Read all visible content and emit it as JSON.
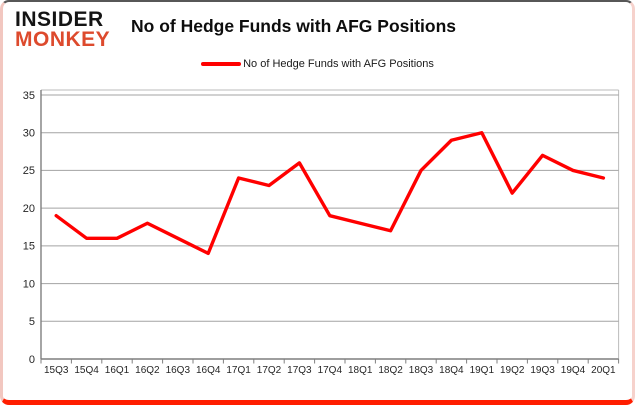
{
  "brand": {
    "line1": "INSIDER",
    "line2": "MONKEY"
  },
  "header": {
    "title": "No of Hedge Funds with AFG Positions"
  },
  "legend": {
    "label": "No of Hedge Funds with AFG Positions"
  },
  "colors": {
    "series_red": "#ff0000",
    "logo_black": "#141414",
    "logo_red": "#dd4a2d",
    "grid_gray": "#a3a3a3",
    "axis_gray": "#7f7f7f",
    "frame_light": "#bbbbbb",
    "tick_text": "#262626",
    "card_bottom_border": "#ff1e00"
  },
  "chart_data": {
    "type": "line",
    "title": "No of Hedge Funds with AFG Positions",
    "categories": [
      "15Q3",
      "15Q4",
      "16Q1",
      "16Q2",
      "16Q3",
      "16Q4",
      "17Q1",
      "17Q2",
      "17Q3",
      "17Q4",
      "18Q1",
      "18Q2",
      "18Q3",
      "18Q4",
      "19Q1",
      "19Q2",
      "19Q3",
      "19Q4",
      "20Q1"
    ],
    "series": [
      {
        "name": "No of Hedge Funds with AFG Positions",
        "color": "#ff0000",
        "values": [
          19,
          16,
          16,
          18,
          16,
          14,
          24,
          23,
          26,
          19,
          18,
          17,
          25,
          29,
          30,
          22,
          27,
          25,
          24
        ]
      }
    ],
    "xlabel": "",
    "ylabel": "",
    "ylim": [
      0,
      35
    ],
    "yticks": [
      0,
      5,
      10,
      15,
      20,
      25,
      30,
      35
    ],
    "grid": true,
    "legend_position": "top"
  }
}
